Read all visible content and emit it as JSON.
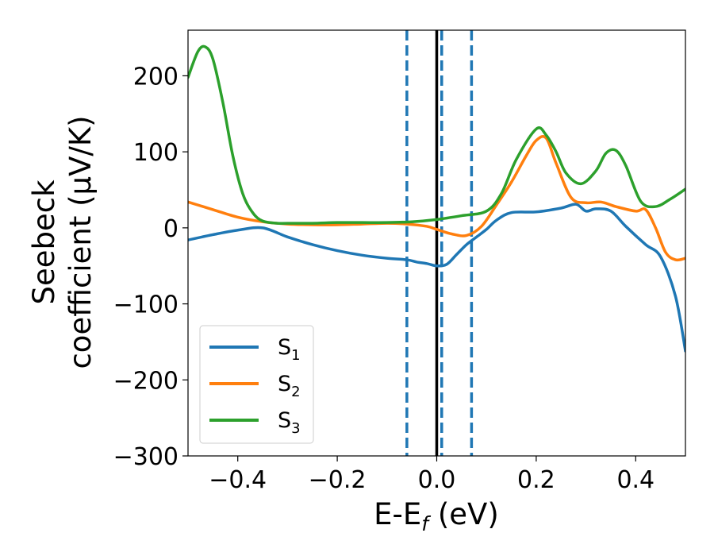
{
  "chart_data": {
    "type": "line",
    "xlabel": "E-E",
    "xlabel_sub": "f",
    "xlabel_unit": " (eV)",
    "ylabel_line1": "Seebeck",
    "ylabel_line2": "coefficient  (μV/K)",
    "xlim": [
      -0.5,
      0.5
    ],
    "ylim": [
      -300,
      260
    ],
    "xticks": [
      -0.4,
      -0.2,
      0.0,
      0.2,
      0.4
    ],
    "xtick_labels": [
      "−0.4",
      "−0.2",
      "0.0",
      "0.2",
      "0.4"
    ],
    "yticks": [
      -300,
      -200,
      -100,
      0,
      100,
      200
    ],
    "ytick_labels": [
      "−300",
      "−200",
      "−100",
      "0",
      "100",
      "200"
    ],
    "legend_position": "lower-left",
    "vlines": [
      {
        "x": -0.06,
        "style": "dashed",
        "color": "#1f77b4"
      },
      {
        "x": 0.0,
        "style": "solid",
        "color": "#000000"
      },
      {
        "x": 0.01,
        "style": "dashed",
        "color": "#1f77b4"
      },
      {
        "x": 0.07,
        "style": "dashed",
        "color": "#1f77b4"
      }
    ],
    "series": [
      {
        "name": "S",
        "sub": "1",
        "color": "#1f77b4",
        "x": [
          -0.5,
          -0.45,
          -0.4,
          -0.35,
          -0.3,
          -0.25,
          -0.2,
          -0.15,
          -0.1,
          -0.06,
          -0.04,
          -0.02,
          0.0,
          0.02,
          0.04,
          0.06,
          0.08,
          0.1,
          0.12,
          0.15,
          0.2,
          0.25,
          0.28,
          0.3,
          0.32,
          0.35,
          0.38,
          0.42,
          0.45,
          0.48,
          0.5
        ],
        "values": [
          -16,
          -9,
          -3,
          0,
          -12,
          -22,
          -30,
          -36,
          -40,
          -42,
          -45,
          -47,
          -50,
          -48,
          -35,
          -22,
          -12,
          -2,
          10,
          20,
          21,
          26,
          31,
          22,
          25,
          22,
          2,
          -22,
          -38,
          -90,
          -162
        ]
      },
      {
        "name": "S",
        "sub": "2",
        "color": "#ff7f0e",
        "x": [
          -0.5,
          -0.45,
          -0.4,
          -0.35,
          -0.3,
          -0.25,
          -0.2,
          -0.15,
          -0.1,
          -0.06,
          -0.02,
          0.0,
          0.03,
          0.06,
          0.09,
          0.12,
          0.15,
          0.18,
          0.2,
          0.22,
          0.24,
          0.27,
          0.3,
          0.33,
          0.36,
          0.4,
          0.42,
          0.44,
          0.46,
          0.48,
          0.5
        ],
        "values": [
          34,
          24,
          14,
          8,
          5,
          4,
          4,
          5,
          6,
          5,
          2,
          -2,
          -8,
          -10,
          2,
          30,
          60,
          95,
          115,
          118,
          85,
          40,
          33,
          34,
          28,
          22,
          24,
          0,
          -32,
          -42,
          -40
        ]
      },
      {
        "name": "S",
        "sub": "3",
        "color": "#2ca02c",
        "x": [
          -0.5,
          -0.48,
          -0.465,
          -0.45,
          -0.43,
          -0.41,
          -0.39,
          -0.37,
          -0.35,
          -0.32,
          -0.3,
          -0.25,
          -0.2,
          -0.15,
          -0.1,
          -0.05,
          0.0,
          0.05,
          0.1,
          0.13,
          0.16,
          0.2,
          0.22,
          0.24,
          0.26,
          0.29,
          0.32,
          0.34,
          0.36,
          0.38,
          0.41,
          0.44,
          0.47,
          0.5
        ],
        "values": [
          198,
          232,
          238,
          222,
          165,
          95,
          45,
          20,
          9,
          6,
          6,
          6,
          7,
          7,
          7,
          8,
          11,
          16,
          22,
          45,
          90,
          130,
          122,
          100,
          72,
          58,
          75,
          98,
          102,
          82,
          35,
          28,
          38,
          51
        ]
      }
    ]
  }
}
